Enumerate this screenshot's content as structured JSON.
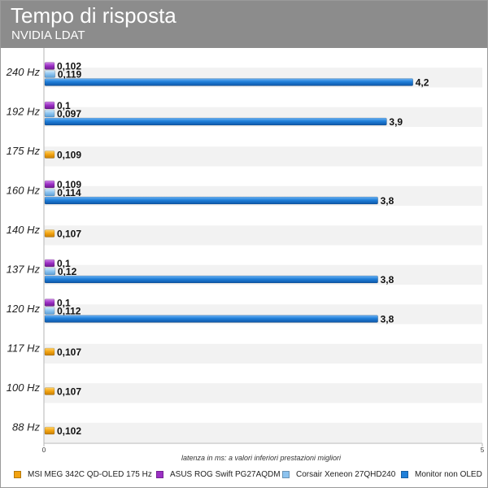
{
  "header": {
    "title": "Tempo di risposta",
    "subtitle": "NVIDIA LDAT"
  },
  "colors": {
    "header_bg": "#8c8c8c",
    "band": "#f2f2f2",
    "msi": "#f2a20f",
    "asus": "#9b2fc4",
    "corsair": "#8cc3ef",
    "nonoled": "#1f7fd9"
  },
  "chart_data": {
    "type": "bar",
    "orientation": "horizontal",
    "title": "Tempo di risposta",
    "subtitle": "NVIDIA LDAT",
    "xlabel": "latenza in ms: a valori inferiori prestazioni migliori",
    "xlim": [
      0,
      5
    ],
    "xticks": [
      "0",
      "5"
    ],
    "categories": [
      "240 Hz",
      "192 Hz",
      "175 Hz",
      "160 Hz",
      "140 Hz",
      "137 Hz",
      "120 Hz",
      "117 Hz",
      "100 Hz",
      "88 Hz"
    ],
    "series": [
      {
        "name": "MSI MEG 342C QD-OLED 175 Hz",
        "color": "#f2a20f",
        "values": [
          null,
          null,
          0.109,
          null,
          0.107,
          null,
          null,
          0.107,
          0.107,
          0.102
        ],
        "labels": [
          null,
          null,
          "0,109",
          null,
          "0,107",
          null,
          null,
          "0,107",
          "0,107",
          "0,102"
        ]
      },
      {
        "name": "ASUS ROG Swift PG27AQDM",
        "color": "#9b2fc4",
        "values": [
          0.102,
          0.1,
          null,
          0.109,
          null,
          0.1,
          0.1,
          null,
          null,
          null
        ],
        "labels": [
          "0,102",
          "0,1",
          null,
          "0,109",
          null,
          "0,1",
          "0,1",
          null,
          null,
          null
        ]
      },
      {
        "name": "Corsair Xeneon 27QHD240",
        "color": "#8cc3ef",
        "values": [
          0.119,
          0.097,
          null,
          0.114,
          null,
          0.12,
          0.112,
          null,
          null,
          null
        ],
        "labels": [
          "0,119",
          "0,097",
          null,
          "0,114",
          null,
          "0,12",
          "0,112",
          null,
          null,
          null
        ]
      },
      {
        "name": "Monitor non OLED",
        "color": "#1f7fd9",
        "values": [
          4.2,
          3.9,
          null,
          3.8,
          null,
          3.8,
          3.8,
          null,
          null,
          null
        ],
        "labels": [
          "4,2",
          "3,9",
          null,
          "3,8",
          null,
          "3,8",
          "3,8",
          null,
          null,
          null
        ]
      }
    ],
    "legend_position": "bottom",
    "grid": false
  }
}
